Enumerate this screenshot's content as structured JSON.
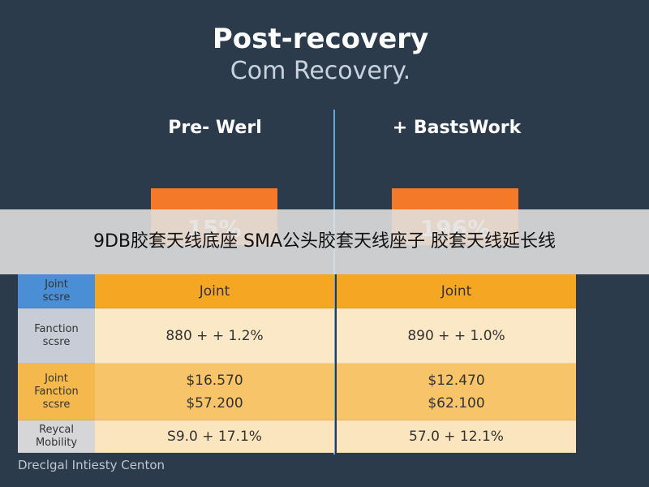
{
  "header": {
    "title": "Post-recovery",
    "subtitle": "Com Recovery."
  },
  "columns": [
    {
      "title": "Pre- Werl",
      "box": "15%"
    },
    {
      "title": "+ BastsWork",
      "box": "196%"
    }
  ],
  "banner": "9DB胶套天线底座 SMA公头胶套天线座子 胶套天线延长线",
  "table": {
    "rows": [
      [
        [
          "Joint",
          "scsre"
        ],
        [
          "Joint"
        ],
        [
          "Joint"
        ]
      ],
      [
        [
          "Fanction",
          "scsre"
        ],
        [
          "880 + + 1.2%"
        ],
        [
          "890 + + 1.0%"
        ]
      ],
      [
        [
          "Joint",
          "Fanction",
          "scsre"
        ],
        [
          "$16.570",
          "$57.200"
        ],
        [
          "$12.470",
          "$62.100"
        ]
      ],
      [
        [
          "Reycal",
          "Mobility"
        ],
        [
          "S9.0 + 17.1%"
        ],
        [
          "57.0 + 12.1%"
        ]
      ]
    ]
  },
  "footer": "Dreclgal Intiesty Centon"
}
